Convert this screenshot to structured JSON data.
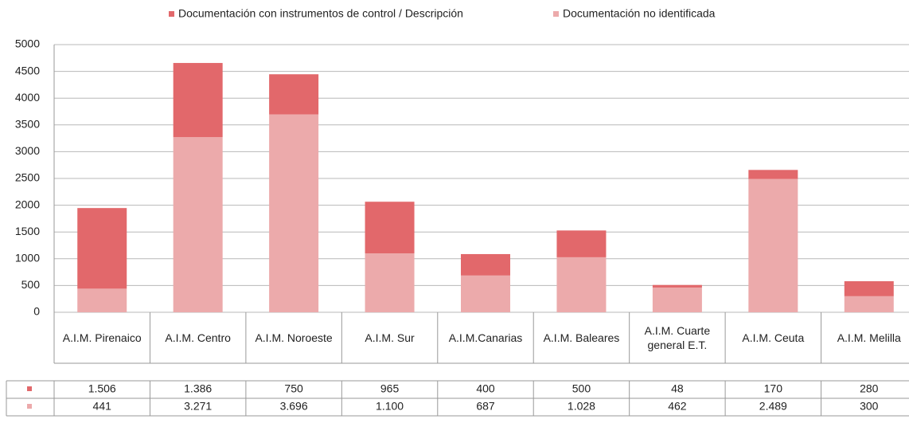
{
  "chart_data": {
    "type": "bar",
    "stacked": true,
    "categories": [
      "A.I.M. Pirenaico",
      "A.I.M. Centro",
      "A.I.M. Noroeste",
      "A.I.M. Sur",
      "A.I.M.Canarias",
      "A.I.M. Baleares",
      "A.I.M. Cuarte general E.T.",
      "A.I.M. Ceuta",
      "A.I.M. Melilla"
    ],
    "series": [
      {
        "name": "Documentación con instrumentos de control / Descripción",
        "color": "#e2686b",
        "values": [
          1506,
          1386,
          750,
          965,
          400,
          500,
          48,
          170,
          280
        ],
        "value_labels": [
          "1.506",
          "1.386",
          "750",
          "965",
          "400",
          "500",
          "48",
          "170",
          "280"
        ]
      },
      {
        "name": "Documentación no identificada",
        "color": "#ecaaab",
        "values": [
          441,
          3271,
          3696,
          1100,
          687,
          1028,
          462,
          2489,
          300
        ],
        "value_labels": [
          "441",
          "3.271",
          "3.696",
          "1.100",
          "687",
          "1.028",
          "462",
          "2.489",
          "300"
        ]
      }
    ],
    "ylim": [
      0,
      5000
    ],
    "yticks": [
      0,
      500,
      1000,
      1500,
      2000,
      2500,
      3000,
      3500,
      4000,
      4500,
      5000
    ],
    "grid": true,
    "legend": "top"
  }
}
